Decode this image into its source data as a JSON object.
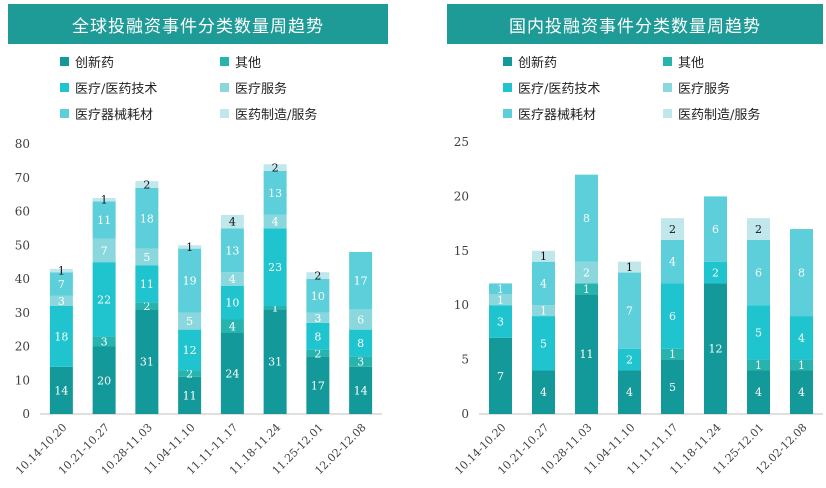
{
  "colors": {
    "title_bg": "#1f9b97",
    "series": [
      "#14999a",
      "#27b3ae",
      "#1fc4cf",
      "#8ad8de",
      "#5dcfda",
      "#bfe7ec"
    ]
  },
  "legend": [
    "创新药",
    "其他",
    "医疗/医药技术",
    "医疗服务",
    "医疗器械耗材",
    "医药制造/服务"
  ],
  "chart_data": [
    {
      "type": "bar",
      "stacked": true,
      "title": "全球投融资事件分类数量周趋势",
      "categories": [
        "10.14-10.20",
        "10.21-10.27",
        "10.28-11.03",
        "11.04-11.10",
        "11.11-11.17",
        "11.18-11.24",
        "11.25-12.01",
        "12.02-12.08"
      ],
      "ylim": [
        0,
        80
      ],
      "yticks": [
        0,
        10,
        20,
        30,
        40,
        50,
        60,
        70,
        80
      ],
      "tick_labels": [
        "0",
        "10",
        "20",
        "30",
        "40",
        "50",
        "60",
        "70",
        "80"
      ],
      "series": [
        {
          "name": "创新药",
          "values": [
            14,
            20,
            31,
            11,
            24,
            31,
            17,
            14
          ]
        },
        {
          "name": "其他",
          "values": [
            0,
            3,
            2,
            2,
            4,
            1,
            2,
            3
          ]
        },
        {
          "name": "医疗/医药技术",
          "values": [
            18,
            22,
            11,
            12,
            10,
            23,
            8,
            8
          ]
        },
        {
          "name": "医疗服务",
          "values": [
            3,
            7,
            5,
            5,
            4,
            4,
            3,
            6
          ]
        },
        {
          "name": "医疗器械耗材",
          "values": [
            7,
            11,
            18,
            19,
            13,
            13,
            10,
            17
          ]
        },
        {
          "name": "医药制造/服务",
          "values": [
            1,
            1,
            2,
            1,
            4,
            2,
            2,
            0
          ]
        }
      ],
      "labels": [
        [
          "14",
          "",
          "18",
          "3",
          "7",
          "1"
        ],
        [
          "20",
          "3",
          "22",
          "7",
          "11",
          "1"
        ],
        [
          "31",
          "2",
          "11",
          "5",
          "18",
          "2"
        ],
        [
          "11",
          "2",
          "12",
          "5",
          "19",
          "1"
        ],
        [
          "24",
          "4",
          "10",
          "4",
          "13",
          "4"
        ],
        [
          "31",
          "1",
          "23",
          "4",
          "13",
          "2"
        ],
        [
          "17",
          "2",
          "8",
          "3",
          "10",
          "2"
        ],
        [
          "14",
          "3",
          "8",
          "6",
          "17",
          ""
        ]
      ]
    },
    {
      "type": "bar",
      "stacked": true,
      "title": "国内投融资事件分类数量周趋势",
      "categories": [
        "10.14-10.20",
        "10.21-10.27",
        "10.28-11.03",
        "11.04-11.10",
        "11.11-11.17",
        "11.18-11.24",
        "11.25-12.01",
        "12.02-12.08"
      ],
      "ylim": [
        0,
        25
      ],
      "yticks": [
        0,
        5,
        10,
        15,
        20,
        25
      ],
      "tick_labels": [
        "0",
        "5",
        "10",
        "15",
        "20",
        "25"
      ],
      "series": [
        {
          "name": "创新药",
          "values": [
            7,
            4,
            11,
            4,
            5,
            12,
            4,
            4
          ]
        },
        {
          "name": "其他",
          "values": [
            0,
            0,
            1,
            0,
            1,
            0,
            1,
            1
          ]
        },
        {
          "name": "医疗/医药技术",
          "values": [
            3,
            5,
            0,
            2,
            6,
            2,
            5,
            4
          ]
        },
        {
          "name": "医疗服务",
          "values": [
            1,
            1,
            2,
            0,
            0,
            0,
            0,
            0
          ]
        },
        {
          "name": "医疗器械耗材",
          "values": [
            1,
            4,
            8,
            7,
            4,
            6,
            6,
            8
          ]
        },
        {
          "name": "医药制造/服务",
          "values": [
            0,
            1,
            0,
            1,
            2,
            0,
            2,
            0
          ]
        }
      ],
      "labels": [
        [
          "7",
          "",
          "3",
          "1",
          "1",
          ""
        ],
        [
          "4",
          "",
          "5",
          "1",
          "4",
          "1"
        ],
        [
          "11",
          "1",
          "",
          "2",
          "8",
          ""
        ],
        [
          "4",
          "",
          "2",
          "",
          "7",
          "1"
        ],
        [
          "5",
          "1",
          "6",
          "",
          "4",
          "2"
        ],
        [
          "12",
          "",
          "2",
          "",
          "6",
          ""
        ],
        [
          "4",
          "1",
          "5",
          "",
          "6",
          "2"
        ],
        [
          "4",
          "1",
          "4",
          "",
          "8",
          ""
        ]
      ]
    }
  ]
}
